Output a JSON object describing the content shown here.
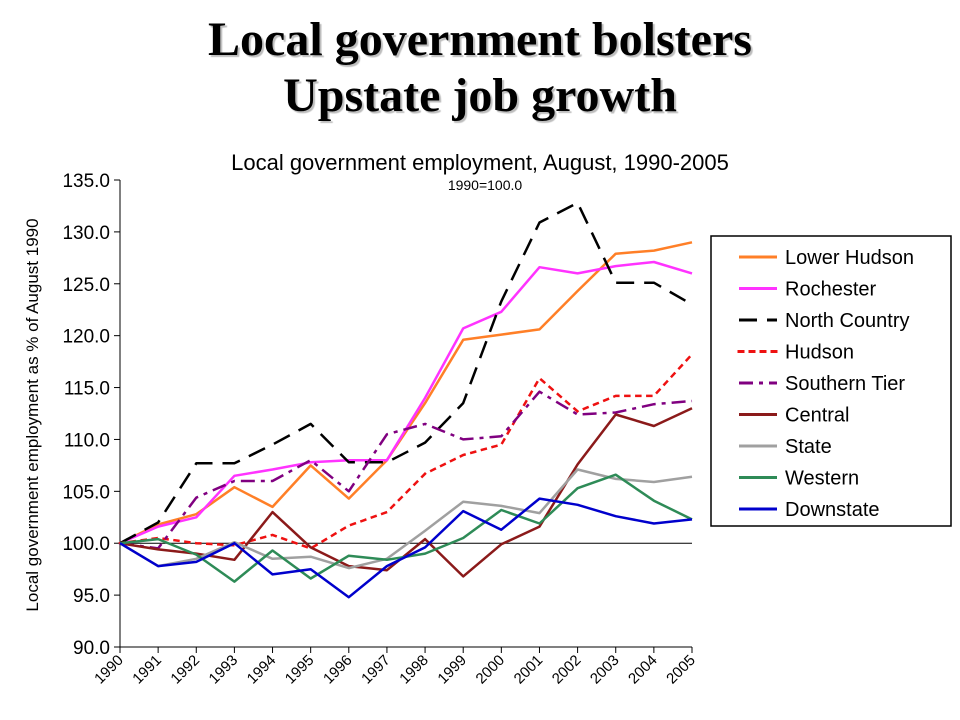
{
  "slide": {
    "title_line1": "Local government bolsters",
    "title_line2": "Upstate job growth"
  },
  "chart_data": {
    "type": "line",
    "title": "Local government employment, August, 1990-2005",
    "subtitle": "1990=100.0",
    "ylabel": "Local government employment as % of August 1990",
    "xlabel": "",
    "ylim": [
      90.0,
      135.0
    ],
    "yticks": [
      "90.0",
      "95.0",
      "100.0",
      "105.0",
      "110.0",
      "115.0",
      "120.0",
      "125.0",
      "130.0",
      "135.0"
    ],
    "categories": [
      "1990",
      "1991",
      "1992",
      "1993",
      "1994",
      "1995",
      "1996",
      "1997",
      "1998",
      "1999",
      "2000",
      "2001",
      "2002",
      "2003",
      "2004",
      "2005"
    ],
    "reference_line": 100.0,
    "legend_position": "right",
    "grid": false,
    "series": [
      {
        "name": "Lower Hudson",
        "color": "#ff7f27",
        "dash": "solid",
        "values": [
          100.0,
          101.8,
          102.8,
          105.4,
          103.5,
          107.5,
          104.3,
          108.0,
          113.5,
          119.6,
          120.1,
          120.6,
          124.3,
          127.9,
          128.2,
          129.0
        ]
      },
      {
        "name": "Rochester",
        "color": "#ff33ff",
        "dash": "solid",
        "values": [
          100.0,
          101.6,
          102.5,
          106.5,
          107.1,
          107.8,
          108.0,
          108.0,
          114.0,
          120.7,
          122.3,
          126.6,
          126.0,
          126.7,
          127.1,
          126.0
        ]
      },
      {
        "name": "North Country",
        "color": "#000000",
        "dash": "longdash",
        "values": [
          100.0,
          102.0,
          107.7,
          107.7,
          109.5,
          111.5,
          107.8,
          107.8,
          109.7,
          113.5,
          123.3,
          130.9,
          132.8,
          125.1,
          125.1,
          123.0
        ]
      },
      {
        "name": "Hudson",
        "color": "#ee1111",
        "dash": "dot",
        "values": [
          100.0,
          100.5,
          100.0,
          99.8,
          100.8,
          99.5,
          101.7,
          103.0,
          106.7,
          108.5,
          109.5,
          115.9,
          112.7,
          114.2,
          114.2,
          118.2
        ]
      },
      {
        "name": "Southern Tier",
        "color": "#800080",
        "dash": "dashdot",
        "values": [
          100.0,
          99.5,
          104.4,
          106.0,
          106.0,
          108.0,
          105.0,
          110.5,
          111.5,
          110.0,
          110.3,
          114.6,
          112.4,
          112.6,
          113.4,
          113.7
        ]
      },
      {
        "name": "Central",
        "color": "#8b1a1a",
        "dash": "solid",
        "values": [
          100.0,
          99.4,
          99.0,
          98.4,
          103.0,
          99.6,
          97.8,
          97.4,
          100.4,
          96.8,
          99.9,
          101.6,
          107.6,
          112.4,
          111.3,
          113.0
        ]
      },
      {
        "name": "State",
        "color": "#a0a0a0",
        "dash": "solid",
        "values": [
          100.0,
          97.8,
          98.5,
          100.1,
          98.5,
          98.7,
          97.6,
          98.5,
          101.2,
          104.0,
          103.6,
          102.9,
          107.1,
          106.2,
          105.9,
          106.4
        ]
      },
      {
        "name": "Western",
        "color": "#2e8b57",
        "dash": "solid",
        "values": [
          100.0,
          100.4,
          98.9,
          96.3,
          99.3,
          96.6,
          98.8,
          98.4,
          99.0,
          100.5,
          103.2,
          101.9,
          105.3,
          106.6,
          104.1,
          102.3
        ]
      },
      {
        "name": "Downstate",
        "color": "#0000cc",
        "dash": "solid",
        "values": [
          100.0,
          97.8,
          98.2,
          100.0,
          97.0,
          97.5,
          94.8,
          97.8,
          99.6,
          103.1,
          101.3,
          104.3,
          103.7,
          102.6,
          101.9,
          102.3
        ]
      }
    ]
  }
}
